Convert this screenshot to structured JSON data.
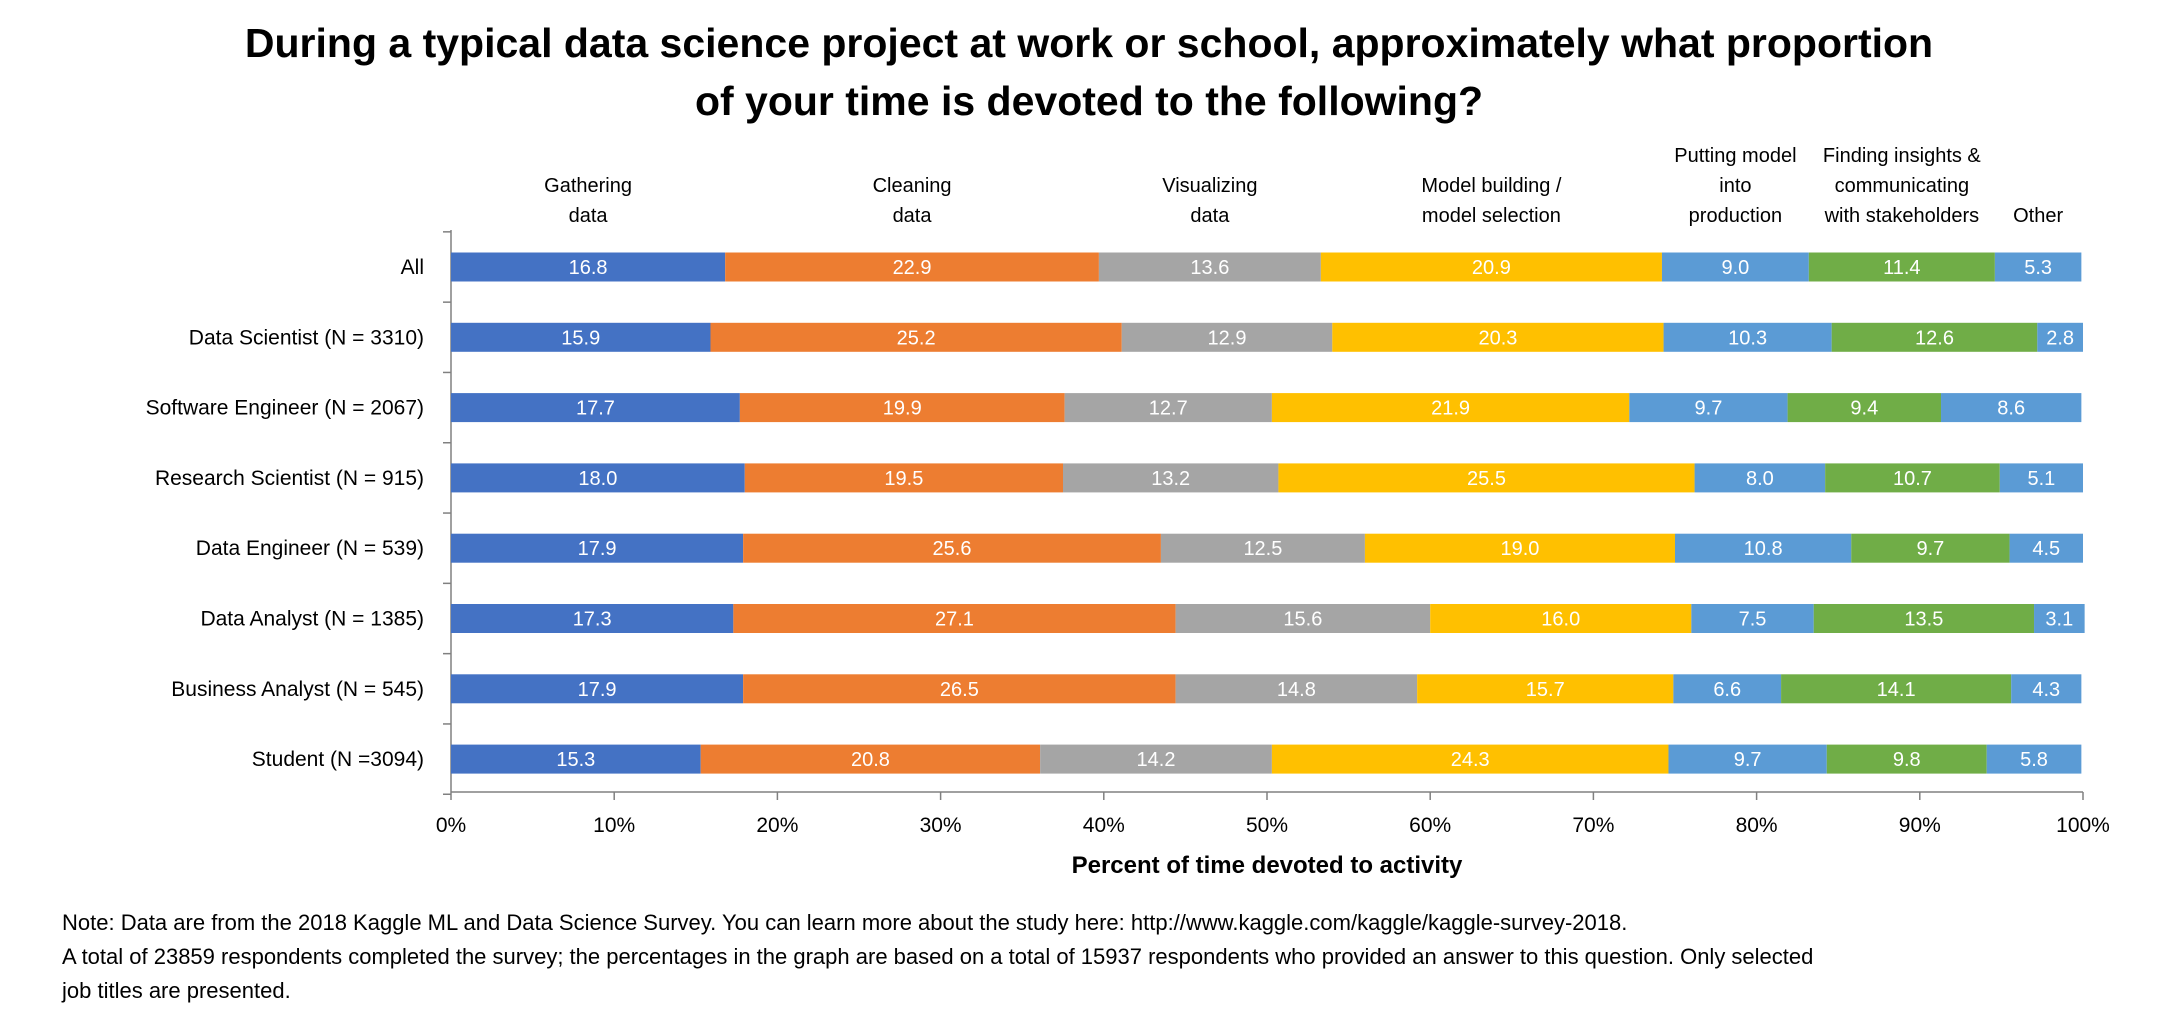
{
  "chart_data": {
    "type": "bar",
    "orientation": "horizontal",
    "stacked": true,
    "title_line1": "During a typical data science project at work or school, approximately what proportion",
    "title_line2": "of your time is devoted to the following?",
    "xlabel": "Percent of time devoted to activity",
    "ylabel": "",
    "xlim": [
      0,
      100
    ],
    "x_ticks": [
      "0%",
      "10%",
      "20%",
      "30%",
      "40%",
      "50%",
      "60%",
      "70%",
      "80%",
      "90%",
      "100%"
    ],
    "categories": [
      "All",
      "Data Scientist (N = 3310)",
      "Software Engineer (N = 2067)",
      "Research Scientist (N = 915)",
      "Data Engineer (N = 539)",
      "Data Analyst (N = 1385)",
      "Business Analyst (N = 545)",
      "Student (N =3094)"
    ],
    "series": [
      {
        "name": "Gathering data",
        "header": [
          "Gathering",
          "data"
        ],
        "color": "#4472C4",
        "values": [
          16.8,
          15.9,
          17.7,
          18.0,
          17.9,
          17.3,
          17.9,
          15.3
        ]
      },
      {
        "name": "Cleaning data",
        "header": [
          "Cleaning",
          "data"
        ],
        "color": "#ED7D31",
        "values": [
          22.9,
          25.2,
          19.9,
          19.5,
          25.6,
          27.1,
          26.5,
          20.8
        ]
      },
      {
        "name": "Visualizing data",
        "header": [
          "Visualizing",
          "data"
        ],
        "color": "#A5A5A5",
        "values": [
          13.6,
          12.9,
          12.7,
          13.2,
          12.5,
          15.6,
          14.8,
          14.2
        ]
      },
      {
        "name": "Model building / model selection",
        "header": [
          "Model building /",
          "model selection"
        ],
        "color": "#FFC000",
        "values": [
          20.9,
          20.3,
          21.9,
          25.5,
          19.0,
          16.0,
          15.7,
          24.3
        ]
      },
      {
        "name": "Putting model into production",
        "header": [
          "Putting model",
          "into",
          "production"
        ],
        "color": "#5B9BD5",
        "values": [
          9.0,
          10.3,
          9.7,
          8.0,
          10.8,
          7.5,
          6.6,
          9.7
        ]
      },
      {
        "name": "Finding insights & communicating with stakeholders",
        "header": [
          "Finding insights &",
          "communicating",
          "with stakeholders"
        ],
        "color": "#70AD47",
        "values": [
          11.4,
          12.6,
          9.4,
          10.7,
          9.7,
          13.5,
          14.1,
          9.8
        ]
      },
      {
        "name": "Other",
        "header": [
          "Other"
        ],
        "color": "#5B9BD5",
        "values": [
          5.3,
          2.8,
          8.6,
          5.1,
          4.5,
          3.1,
          4.3,
          5.8
        ]
      }
    ],
    "value_labels": [
      [
        "16.8",
        "15.9",
        "17.7",
        "18.0",
        "17.9",
        "17.3",
        "17.9",
        "15.3"
      ],
      [
        "22.9",
        "25.2",
        "19.9",
        "19.5",
        "25.6",
        "27.1",
        "26.5",
        "20.8"
      ],
      [
        "13.6",
        "12.9",
        "12.7",
        "13.2",
        "12.5",
        "15.6",
        "14.8",
        "14.2"
      ],
      [
        "20.9",
        "20.3",
        "21.9",
        "25.5",
        "19.0",
        "16.0",
        "15.7",
        "24.3"
      ],
      [
        "9.0",
        "10.3",
        "9.7",
        "8.0",
        "10.8",
        "7.5",
        "6.6",
        "9.7"
      ],
      [
        "11.4",
        "12.6",
        "9.4",
        "10.7",
        "9.7",
        "13.5",
        "14.1",
        "9.8"
      ],
      [
        "5.3",
        "2.8",
        "8.6",
        "5.1",
        "4.5",
        "3.1",
        "4.3",
        "5.8"
      ]
    ],
    "grid": false,
    "legend": "series headers above bars"
  },
  "notes": {
    "line1": "Note: Data are from the 2018 Kaggle ML and Data Science Survey. You can learn more about the study here: http://www.kaggle.com/kaggle/kaggle-survey-2018.",
    "line2": "A total of 23859 respondents completed the survey; the percentages in the graph are based on a total of 15937 respondents who provided an answer to this question. Only selected",
    "line3": "job titles are presented."
  }
}
